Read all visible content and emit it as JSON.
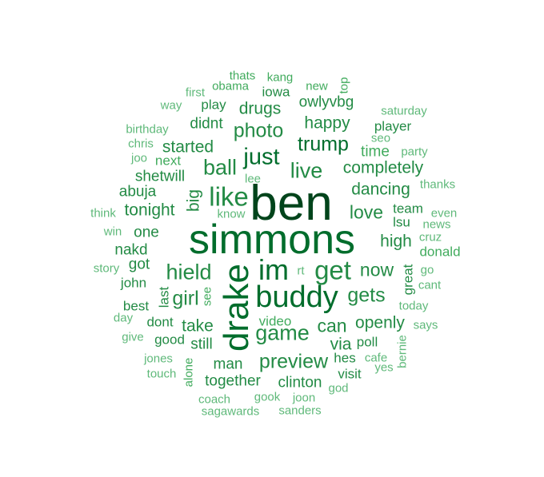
{
  "word_cloud": {
    "colors": {
      "darkest": "#00441b",
      "dark": "#006d2c",
      "medium": "#238b45",
      "light": "#41ab5d",
      "lighter": "#5fb97a"
    },
    "words": [
      {
        "text": "simmons",
        "tier": 1
      },
      {
        "text": "ben",
        "tier": 1
      },
      {
        "text": "drake",
        "tier": 2
      },
      {
        "text": "buddy",
        "tier": 2
      },
      {
        "text": "im",
        "tier": 2
      },
      {
        "text": "get",
        "tier": 3
      },
      {
        "text": "like",
        "tier": 3
      },
      {
        "text": "just",
        "tier": 3
      },
      {
        "text": "hield",
        "tier": 3
      },
      {
        "text": "game",
        "tier": 3
      },
      {
        "text": "live",
        "tier": 3
      },
      {
        "text": "ball",
        "tier": 3
      },
      {
        "text": "trump",
        "tier": 3
      },
      {
        "text": "photo",
        "tier": 3
      },
      {
        "text": "preview",
        "tier": 3
      },
      {
        "text": "gets",
        "tier": 3
      },
      {
        "text": "girl",
        "tier": 3
      },
      {
        "text": "love",
        "tier": 3
      },
      {
        "text": "now",
        "tier": 3
      },
      {
        "text": "can",
        "tier": 3
      },
      {
        "text": "completely",
        "tier": 4
      },
      {
        "text": "dancing",
        "tier": 4
      },
      {
        "text": "happy",
        "tier": 4
      },
      {
        "text": "drugs",
        "tier": 4
      },
      {
        "text": "started",
        "tier": 4
      },
      {
        "text": "tonight",
        "tier": 4
      },
      {
        "text": "openly",
        "tier": 4
      },
      {
        "text": "take",
        "tier": 4
      },
      {
        "text": "high",
        "tier": 4
      },
      {
        "text": "via",
        "tier": 4
      },
      {
        "text": "time",
        "tier": 4
      },
      {
        "text": "big",
        "tier": 4
      },
      {
        "text": "owlyvbg",
        "tier": 4
      },
      {
        "text": "shetwill",
        "tier": 4
      },
      {
        "text": "abuja",
        "tier": 4
      },
      {
        "text": "didnt",
        "tier": 4
      },
      {
        "text": "one",
        "tier": 4
      },
      {
        "text": "nakd",
        "tier": 4
      },
      {
        "text": "man",
        "tier": 4
      },
      {
        "text": "together",
        "tier": 4
      },
      {
        "text": "clinton",
        "tier": 4
      },
      {
        "text": "still",
        "tier": 4
      },
      {
        "text": "got",
        "tier": 4
      },
      {
        "text": "john",
        "tier": 4
      },
      {
        "text": "best",
        "tier": 4
      },
      {
        "text": "dont",
        "tier": 4
      },
      {
        "text": "good",
        "tier": 4
      },
      {
        "text": "hes",
        "tier": 4
      },
      {
        "text": "poll",
        "tier": 4
      },
      {
        "text": "visit",
        "tier": 4
      },
      {
        "text": "iowa",
        "tier": 4
      },
      {
        "text": "play",
        "tier": 4
      },
      {
        "text": "player",
        "tier": 4
      },
      {
        "text": "team",
        "tier": 4
      },
      {
        "text": "lsu",
        "tier": 4
      },
      {
        "text": "great",
        "tier": 4
      },
      {
        "text": "next",
        "tier": 5
      },
      {
        "text": "obama",
        "tier": 5
      },
      {
        "text": "kang",
        "tier": 5
      },
      {
        "text": "thats",
        "tier": 5
      },
      {
        "text": "new",
        "tier": 5
      },
      {
        "text": "top",
        "tier": 5
      },
      {
        "text": "first",
        "tier": 5
      },
      {
        "text": "way",
        "tier": 5
      },
      {
        "text": "saturday",
        "tier": 5
      },
      {
        "text": "birthday",
        "tier": 5
      },
      {
        "text": "chris",
        "tier": 5
      },
      {
        "text": "seo",
        "tier": 5
      },
      {
        "text": "party",
        "tier": 5
      },
      {
        "text": "joo",
        "tier": 5
      },
      {
        "text": "lee",
        "tier": 5
      },
      {
        "text": "thanks",
        "tier": 5
      },
      {
        "text": "think",
        "tier": 5
      },
      {
        "text": "know",
        "tier": 5
      },
      {
        "text": "even",
        "tier": 5
      },
      {
        "text": "news",
        "tier": 5
      },
      {
        "text": "win",
        "tier": 5
      },
      {
        "text": "cruz",
        "tier": 5
      },
      {
        "text": "donald",
        "tier": 5
      },
      {
        "text": "story",
        "tier": 5
      },
      {
        "text": "rt",
        "tier": 5
      },
      {
        "text": "go",
        "tier": 5
      },
      {
        "text": "cant",
        "tier": 5
      },
      {
        "text": "last",
        "tier": 5
      },
      {
        "text": "see",
        "tier": 5
      },
      {
        "text": "today",
        "tier": 5
      },
      {
        "text": "day",
        "tier": 5
      },
      {
        "text": "video",
        "tier": 5
      },
      {
        "text": "says",
        "tier": 5
      },
      {
        "text": "give",
        "tier": 5
      },
      {
        "text": "bernie",
        "tier": 5
      },
      {
        "text": "jones",
        "tier": 5
      },
      {
        "text": "cafe",
        "tier": 5
      },
      {
        "text": "yes",
        "tier": 5
      },
      {
        "text": "touch",
        "tier": 5
      },
      {
        "text": "alone",
        "tier": 5
      },
      {
        "text": "god",
        "tier": 5
      },
      {
        "text": "coach",
        "tier": 5
      },
      {
        "text": "gook",
        "tier": 5
      },
      {
        "text": "joon",
        "tier": 5
      },
      {
        "text": "sagawards",
        "tier": 5
      },
      {
        "text": "sanders",
        "tier": 5
      }
    ]
  }
}
